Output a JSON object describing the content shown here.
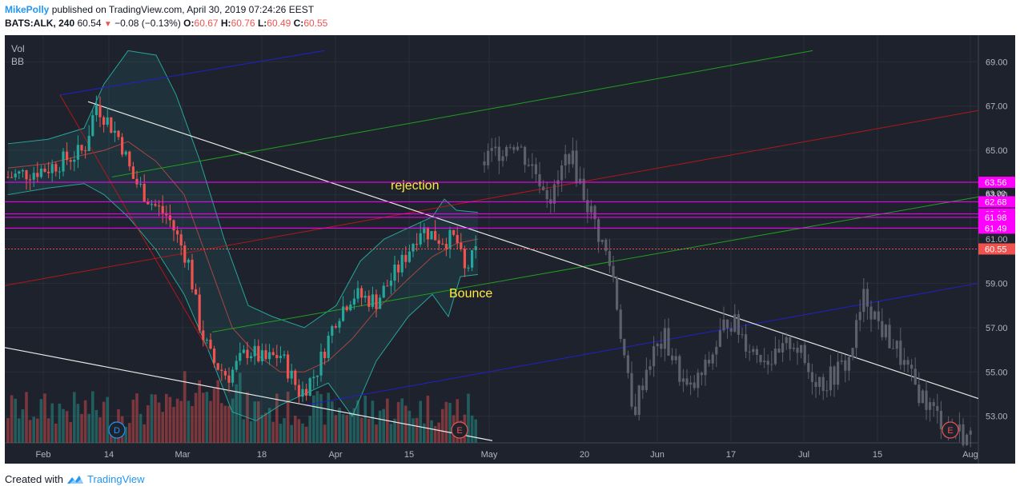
{
  "header": {
    "user": "MikePolly",
    "published": "published on TradingView.com, April 30, 2019 07:24:26 EEST",
    "symbol": "BATS:ALK, 240",
    "last": "60.54",
    "change": "−0.08 (−0.13%)",
    "o_label": "O:",
    "o": "60.67",
    "h_label": "H:",
    "h": "60.76",
    "l_label": "L:",
    "l": "60.49",
    "c_label": "C:",
    "c": "60.55"
  },
  "legend": {
    "vol": "Vol",
    "bb": "BB"
  },
  "footer": {
    "created": "Created with",
    "brand": "TradingView"
  },
  "colors": {
    "background": "#1e222d",
    "up": "#26a69a",
    "down": "#ef5350",
    "magenta": "#ff00ff",
    "future": "#5d606b"
  },
  "chart_data": {
    "type": "candlestick",
    "yticks": [
      "69.00",
      "67.00",
      "65.00",
      "63.00",
      "61.00",
      "59.00",
      "57.00",
      "55.00",
      "53.00"
    ],
    "xticks": [
      "Feb",
      "14",
      "Mar",
      "18",
      "Apr",
      "15",
      "May",
      "20",
      "Jun",
      "17",
      "Jul",
      "15",
      "Aug"
    ],
    "price_badges": [
      {
        "label": "63.56",
        "price": 63.56
      },
      {
        "label": "62.68",
        "price": 62.68
      },
      {
        "label": "62.13",
        "price": 62.13
      },
      {
        "label": "61.98",
        "price": 61.98
      },
      {
        "label": "61.49",
        "price": 61.49
      },
      {
        "label": "60.55",
        "price": 60.55
      }
    ],
    "hidden_badge": "63.00",
    "annotations": [
      {
        "text": "rejection"
      },
      {
        "text": "Bounce"
      }
    ],
    "earnings_markers": [
      "E",
      "E"
    ],
    "dividend_marker": "D",
    "ylim": [
      51.8,
      70.2
    ]
  }
}
